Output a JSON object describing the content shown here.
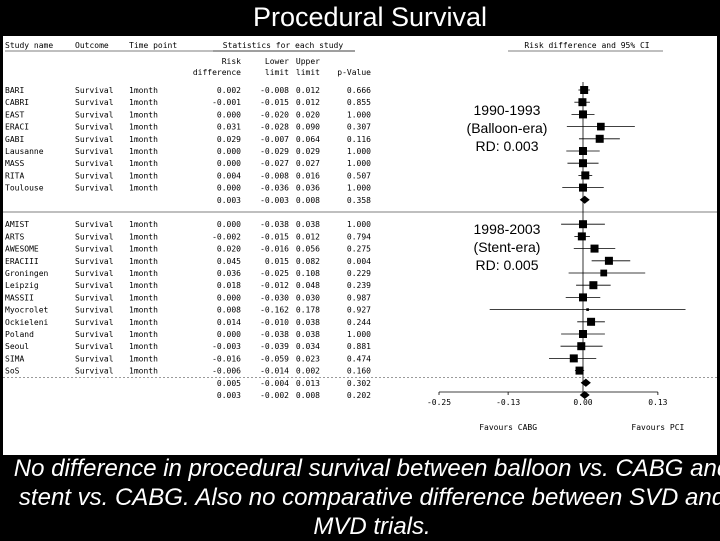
{
  "slide_title": "Procedural Survival",
  "caption": "No difference in procedural survival between balloon vs. CABG and stent vs. CABG. Also no comparative difference between SVD and MVD trials.",
  "headers": {
    "study_name": "Study name",
    "outcome": "Outcome",
    "time_point": "Time point",
    "statistics_group": "Statistics for each study",
    "rd_line1": "Risk",
    "rd_line2": "difference",
    "lower_line1": "Lower",
    "lower_line2": "limit",
    "upper_line1": "Upper",
    "upper_line2": "limit",
    "p_value": "p-Value",
    "plot": "Risk difference and 95% CI"
  },
  "annotations": [
    {
      "lines": [
        "1990-1993",
        "(Balloon-era)",
        "RD: 0.003"
      ]
    },
    {
      "lines": [
        "1998-2003",
        "(Stent-era)",
        "RD: 0.005"
      ]
    }
  ],
  "favours": {
    "left": "Favours CABG",
    "right": "Favours PCI"
  },
  "chart_data": {
    "type": "forest",
    "title": "Procedural Survival",
    "x_label": "Risk difference and 95% CI",
    "x_ticks": [
      "-0.25",
      "-0.13",
      "0.00",
      "0.13"
    ],
    "x_tick_values": [
      -0.25,
      -0.13,
      0.0,
      0.13
    ],
    "x_range": [
      -0.25,
      0.13
    ],
    "groups": [
      {
        "era": "1990-1993 (Balloon-era)",
        "rows": [
          {
            "study": "BARI",
            "outcome": "Survival",
            "time": "1month",
            "rd": "0.002",
            "lower": "-0.008",
            "upper": "0.012",
            "p": "0.666"
          },
          {
            "study": "CABRI",
            "outcome": "Survival",
            "time": "1month",
            "rd": "-0.001",
            "lower": "-0.015",
            "upper": "0.012",
            "p": "0.855"
          },
          {
            "study": "EAST",
            "outcome": "Survival",
            "time": "1month",
            "rd": "0.000",
            "lower": "-0.020",
            "upper": "0.020",
            "p": "1.000"
          },
          {
            "study": "ERACI",
            "outcome": "Survival",
            "time": "1month",
            "rd": "0.031",
            "lower": "-0.028",
            "upper": "0.090",
            "p": "0.307"
          },
          {
            "study": "GABI",
            "outcome": "Survival",
            "time": "1month",
            "rd": "0.029",
            "lower": "-0.007",
            "upper": "0.064",
            "p": "0.116"
          },
          {
            "study": "Lausanne",
            "outcome": "Survival",
            "time": "1month",
            "rd": "0.000",
            "lower": "-0.029",
            "upper": "0.029",
            "p": "1.000"
          },
          {
            "study": "MASS",
            "outcome": "Survival",
            "time": "1month",
            "rd": "0.000",
            "lower": "-0.027",
            "upper": "0.027",
            "p": "1.000"
          },
          {
            "study": "RITA",
            "outcome": "Survival",
            "time": "1month",
            "rd": "0.004",
            "lower": "-0.008",
            "upper": "0.016",
            "p": "0.507"
          },
          {
            "study": "Toulouse",
            "outcome": "Survival",
            "time": "1month",
            "rd": "0.000",
            "lower": "-0.036",
            "upper": "0.036",
            "p": "1.000"
          },
          {
            "study": "",
            "outcome": "",
            "time": "",
            "rd": "0.003",
            "lower": "-0.003",
            "upper": "0.008",
            "p": "0.358",
            "summary": true
          }
        ]
      },
      {
        "era": "1998-2003 (Stent-era)",
        "rows": [
          {
            "study": "AMIST",
            "outcome": "Survival",
            "time": "1month",
            "rd": "0.000",
            "lower": "-0.038",
            "upper": "0.038",
            "p": "1.000"
          },
          {
            "study": "ARTS",
            "outcome": "Survival",
            "time": "1month",
            "rd": "-0.002",
            "lower": "-0.015",
            "upper": "0.012",
            "p": "0.794"
          },
          {
            "study": "AWESOME",
            "outcome": "Survival",
            "time": "1month",
            "rd": "0.020",
            "lower": "-0.016",
            "upper": "0.056",
            "p": "0.275"
          },
          {
            "study": "ERACIII",
            "outcome": "Survival",
            "time": "1month",
            "rd": "0.045",
            "lower": "0.015",
            "upper": "0.082",
            "p": "0.004"
          },
          {
            "study": "Groningen",
            "outcome": "Survival",
            "time": "1month",
            "rd": "0.036",
            "lower": "-0.025",
            "upper": "0.108",
            "p": "0.229"
          },
          {
            "study": "Leipzig",
            "outcome": "Survival",
            "time": "1month",
            "rd": "0.018",
            "lower": "-0.012",
            "upper": "0.048",
            "p": "0.239"
          },
          {
            "study": "MASSII",
            "outcome": "Survival",
            "time": "1month",
            "rd": "0.000",
            "lower": "-0.030",
            "upper": "0.030",
            "p": "0.987"
          },
          {
            "study": "Myocrolet",
            "outcome": "Survival",
            "time": "1month",
            "rd": "0.008",
            "lower": "-0.162",
            "upper": "0.178",
            "p": "0.927"
          },
          {
            "study": "Ockieleni",
            "outcome": "Survival",
            "time": "1month",
            "rd": "0.014",
            "lower": "-0.010",
            "upper": "0.038",
            "p": "0.244"
          },
          {
            "study": "Poland",
            "outcome": "Survival",
            "time": "1month",
            "rd": "0.000",
            "lower": "-0.038",
            "upper": "0.038",
            "p": "1.000"
          },
          {
            "study": "Seoul",
            "outcome": "Survival",
            "time": "1month",
            "rd": "-0.003",
            "lower": "-0.039",
            "upper": "0.034",
            "p": "0.881"
          },
          {
            "study": "SIMA",
            "outcome": "Survival",
            "time": "1month",
            "rd": "-0.016",
            "lower": "-0.059",
            "upper": "0.023",
            "p": "0.474"
          },
          {
            "study": "SoS",
            "outcome": "Survival",
            "time": "1month",
            "rd": "-0.006",
            "lower": "-0.014",
            "upper": "0.002",
            "p": "0.160"
          },
          {
            "study": "",
            "outcome": "",
            "time": "",
            "rd": "0.005",
            "lower": "-0.004",
            "upper": "0.013",
            "p": "0.302",
            "summary": true
          },
          {
            "study": "",
            "outcome": "",
            "time": "",
            "rd": "0.003",
            "lower": "-0.002",
            "upper": "0.008",
            "p": "0.202",
            "summary": true,
            "overall": true
          }
        ]
      }
    ]
  }
}
